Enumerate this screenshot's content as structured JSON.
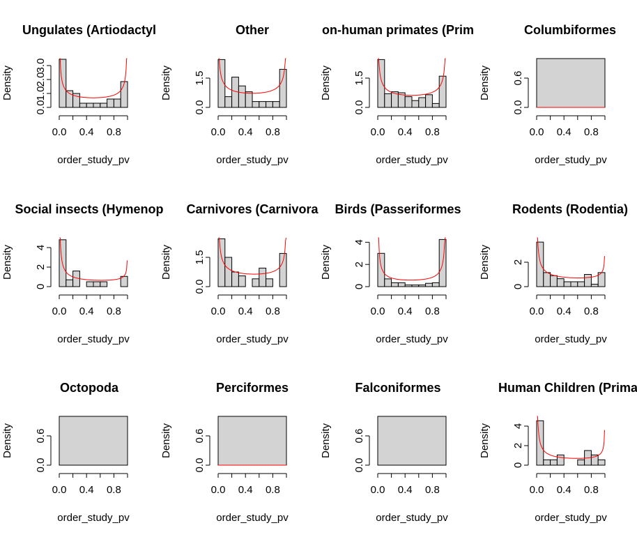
{
  "chart_data": [
    {
      "type": "histogram",
      "title": "Ungulates (Artiodactyl",
      "xlabel": "order_study_pv",
      "ylabel": "Density",
      "xlim": [
        0,
        1
      ],
      "ylim": [
        0,
        3.5
      ],
      "x_ticks": [
        "0.0",
        "0.4",
        "0.8"
      ],
      "y_ticks": [
        "0.0",
        "1.0",
        "2.0",
        "3.0"
      ],
      "bins": [
        0,
        0.1,
        0.2,
        0.3,
        0.4,
        0.5,
        0.6,
        0.7,
        0.8,
        0.9,
        1.0
      ],
      "densities": [
        3.45,
        1.2,
        1.0,
        0.3,
        0.3,
        0.3,
        0.3,
        0.6,
        0.6,
        1.85
      ],
      "density_curve": {
        "color": "#ff0000",
        "a": 0.45,
        "b": 0.45
      }
    },
    {
      "type": "histogram",
      "title": "Other",
      "xlabel": "order_study_pv",
      "ylabel": "Density",
      "xlim": [
        0,
        1
      ],
      "ylim": [
        0,
        2.5
      ],
      "x_ticks": [
        "0.0",
        "0.4",
        "0.8"
      ],
      "y_ticks": [
        "0.0",
        "1.5"
      ],
      "bins": [
        0,
        0.1,
        0.2,
        0.3,
        0.4,
        0.5,
        0.6,
        0.7,
        0.8,
        0.9,
        1.0
      ],
      "densities": [
        2.45,
        0.55,
        1.55,
        1.1,
        0.8,
        0.3,
        0.3,
        0.3,
        0.3,
        1.95
      ],
      "density_curve": {
        "color": "#ff0000",
        "a": 0.55,
        "b": 0.55
      }
    },
    {
      "type": "histogram",
      "title": "on-human primates (Prim",
      "xlabel": "order_study_pv",
      "ylabel": "Density",
      "xlim": [
        0,
        1
      ],
      "ylim": [
        0,
        2.5
      ],
      "x_ticks": [
        "0.0",
        "0.4",
        "0.8"
      ],
      "y_ticks": [
        "0.0",
        "1.5"
      ],
      "bins": [
        0,
        0.1,
        0.2,
        0.3,
        0.4,
        0.5,
        0.6,
        0.7,
        0.8,
        0.9,
        1.0
      ],
      "densities": [
        2.45,
        0.7,
        0.8,
        0.75,
        0.55,
        0.35,
        0.5,
        0.65,
        0.2,
        1.6
      ],
      "density_curve": {
        "color": "#ff0000",
        "a": 0.5,
        "b": 0.5
      }
    },
    {
      "type": "histogram",
      "title": "Columbiformes",
      "xlabel": "order_study_pv",
      "ylabel": "Density",
      "xlim": [
        0,
        1
      ],
      "ylim": [
        0,
        1.0
      ],
      "x_ticks": [
        "0.0",
        "0.4",
        "0.8"
      ],
      "y_ticks": [
        "0.0",
        "0.6"
      ],
      "bins": [
        0,
        1.0
      ],
      "densities": [
        1.0
      ],
      "density_curve": {
        "color": "#ff0000",
        "flat": 0
      }
    },
    {
      "type": "histogram",
      "title": "Social insects (Hymenop",
      "xlabel": "order_study_pv",
      "ylabel": "Density",
      "xlim": [
        0,
        1
      ],
      "ylim": [
        0,
        5
      ],
      "x_ticks": [
        "0.0",
        "0.4",
        "0.8"
      ],
      "y_ticks": [
        "0",
        "2",
        "4"
      ],
      "bins": [
        0,
        0.1,
        0.2,
        0.3,
        0.4,
        0.5,
        0.6,
        0.7,
        0.8,
        0.9,
        1.0
      ],
      "densities": [
        4.8,
        0.7,
        1.6,
        0.0,
        0.5,
        0.5,
        0.5,
        0.0,
        0.0,
        1.05
      ],
      "density_curve": {
        "color": "#ff0000",
        "a": 0.35,
        "b": 0.6
      }
    },
    {
      "type": "histogram",
      "title": "Carnivores (Carnivora",
      "xlabel": "order_study_pv",
      "ylabel": "Density",
      "xlim": [
        0,
        1
      ],
      "ylim": [
        0,
        2.5
      ],
      "x_ticks": [
        "0.0",
        "0.4",
        "0.8"
      ],
      "y_ticks": [
        "0.0",
        "1.5"
      ],
      "bins": [
        0,
        0.1,
        0.2,
        0.3,
        0.4,
        0.5,
        0.6,
        0.7,
        0.8,
        0.9,
        1.0
      ],
      "densities": [
        2.45,
        1.5,
        0.75,
        0.55,
        0.0,
        0.4,
        0.95,
        0.4,
        0.0,
        1.7
      ],
      "density_curve": {
        "color": "#ff0000",
        "a": 0.5,
        "b": 0.55
      }
    },
    {
      "type": "histogram",
      "title": "Birds (Passeriformes",
      "xlabel": "order_study_pv",
      "ylabel": "Density",
      "xlim": [
        0,
        1
      ],
      "ylim": [
        0,
        4.4
      ],
      "x_ticks": [
        "0.0",
        "0.4",
        "0.8"
      ],
      "y_ticks": [
        "0",
        "2",
        "4"
      ],
      "bins": [
        0,
        0.1,
        0.2,
        0.3,
        0.4,
        0.5,
        0.6,
        0.7,
        0.8,
        0.9,
        1.0
      ],
      "densities": [
        3.0,
        0.7,
        0.35,
        0.35,
        0.15,
        0.15,
        0.15,
        0.3,
        0.35,
        4.25
      ],
      "density_curve": {
        "color": "#ff0000",
        "a": 0.3,
        "b": 0.25
      }
    },
    {
      "type": "histogram",
      "title": "Rodents (Rodentia)",
      "xlabel": "order_study_pv",
      "ylabel": "Density",
      "xlim": [
        0,
        1
      ],
      "ylim": [
        0,
        4
      ],
      "x_ticks": [
        "0.0",
        "0.4",
        "0.8"
      ],
      "y_ticks": [
        "0",
        "2"
      ],
      "bins": [
        0,
        0.1,
        0.2,
        0.3,
        0.4,
        0.5,
        0.6,
        0.7,
        0.8,
        0.9,
        1.0
      ],
      "densities": [
        3.65,
        1.15,
        0.9,
        0.65,
        0.4,
        0.4,
        0.4,
        1.0,
        0.2,
        1.15
      ],
      "density_curve": {
        "color": "#ff0000",
        "a": 0.45,
        "b": 0.65
      }
    },
    {
      "type": "histogram",
      "title": "Octopoda",
      "xlabel": "order_study_pv",
      "ylabel": "Density",
      "xlim": [
        0,
        1
      ],
      "ylim": [
        0,
        1.0
      ],
      "x_ticks": [
        "0.0",
        "0.4",
        "0.8"
      ],
      "y_ticks": [
        "0.0",
        "0.6"
      ],
      "bins": [
        0,
        1.0
      ],
      "densities": [
        1.0
      ],
      "density_curve": null
    },
    {
      "type": "histogram",
      "title": "Perciformes",
      "xlabel": "order_study_pv",
      "ylabel": "Density",
      "xlim": [
        0,
        1
      ],
      "ylim": [
        0,
        1.0
      ],
      "x_ticks": [
        "0.0",
        "0.4",
        "0.8"
      ],
      "y_ticks": [
        "0.0",
        "0.6"
      ],
      "bins": [
        0,
        1.0
      ],
      "densities": [
        1.0
      ],
      "density_curve": {
        "color": "#ff0000",
        "flat": 0
      }
    },
    {
      "type": "histogram",
      "title": "Falconiformes",
      "xlabel": "order_study_pv",
      "ylabel": "Density",
      "xlim": [
        0,
        1
      ],
      "ylim": [
        0,
        1.0
      ],
      "x_ticks": [
        "0.0",
        "0.4",
        "0.8"
      ],
      "y_ticks": [
        "0.0",
        "0.6"
      ],
      "bins": [
        0,
        1.0
      ],
      "densities": [
        1.0
      ],
      "density_curve": null
    },
    {
      "type": "histogram",
      "title": "Human Children (Primat",
      "xlabel": "order_study_pv",
      "ylabel": "Density",
      "xlim": [
        0,
        1
      ],
      "ylim": [
        0,
        5
      ],
      "x_ticks": [
        "0.0",
        "0.4",
        "0.8"
      ],
      "y_ticks": [
        "0",
        "2",
        "4"
      ],
      "bins": [
        0,
        0.1,
        0.2,
        0.3,
        0.4,
        0.5,
        0.6,
        0.7,
        0.8,
        0.9,
        1.0
      ],
      "densities": [
        4.55,
        0.55,
        0.55,
        1.05,
        0.0,
        0.0,
        0.55,
        1.5,
        1.05,
        0.55
      ],
      "density_curve": {
        "color": "#ff0000",
        "a": 0.35,
        "b": 0.55
      }
    }
  ],
  "colors": {
    "bar_fill": "#d3d3d3",
    "bar_stroke": "#000000",
    "curve": "#ff0000"
  }
}
